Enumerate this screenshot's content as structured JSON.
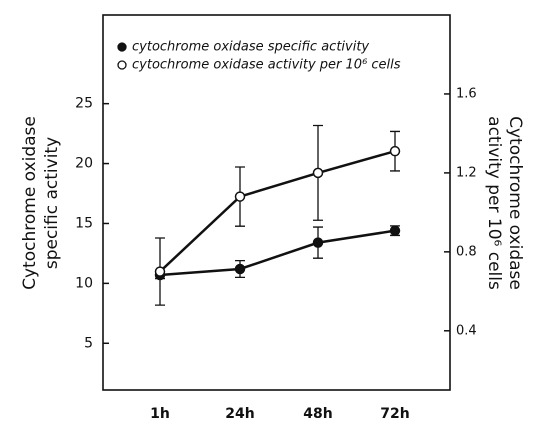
{
  "chart_data": {
    "type": "line",
    "categories": [
      "1h",
      "24h",
      "48h",
      "72h"
    ],
    "series": [
      {
        "name": "cytochrome oxidase specific activity",
        "color": "#111111",
        "marker": "filled",
        "values": [
          10.7,
          11.2,
          13.4,
          14.4
        ],
        "errors": [
          0.3,
          0.7,
          1.3,
          0.4
        ]
      },
      {
        "name": "cytochrome oxidase activity per 10⁶ cells",
        "color": "#111111",
        "marker": "open",
        "axis": "y2",
        "values": [
          0.7,
          1.08,
          1.2,
          1.31
        ],
        "errors": [
          0.17,
          0.15,
          0.24,
          0.1
        ]
      }
    ],
    "ylabel": [
      "Cytochrome oxidase",
      "specific activity"
    ],
    "y2label": [
      "Cytochrome oxidase",
      "activity per 10⁶ cells"
    ],
    "ylim": [
      1.1,
      32.4
    ],
    "yticks": [
      5,
      10,
      15,
      20,
      25
    ],
    "y2lim": [
      0.1,
      2.0
    ],
    "y2ticks": [
      0.4,
      0.8,
      1.2,
      1.6
    ],
    "legend": "upper left"
  }
}
